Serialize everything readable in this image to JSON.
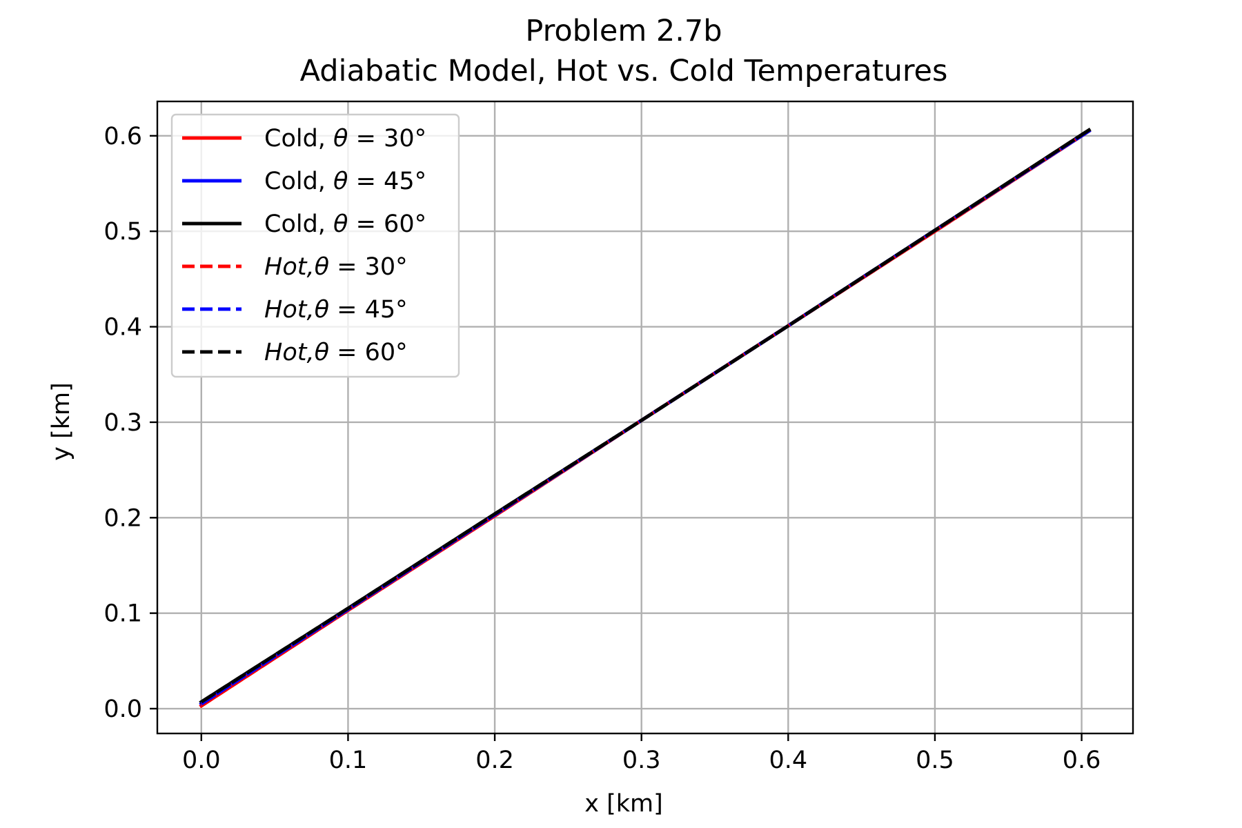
{
  "chart_data": {
    "type": "line",
    "title": "Problem 2.7b",
    "subtitle": "Adiabatic Model, Hot vs. Cold Temperatures",
    "xlabel": "x [km]",
    "ylabel": "y [km]",
    "xlim": [
      -0.03,
      0.635
    ],
    "ylim": [
      -0.026,
      0.636
    ],
    "xticks": [
      0.0,
      0.1,
      0.2,
      0.3,
      0.4,
      0.5,
      0.6
    ],
    "yticks": [
      0.0,
      0.1,
      0.2,
      0.3,
      0.4,
      0.5,
      0.6
    ],
    "xtick_labels": [
      "0.0",
      "0.1",
      "0.2",
      "0.3",
      "0.4",
      "0.5",
      "0.6"
    ],
    "ytick_labels": [
      "0.0",
      "0.1",
      "0.2",
      "0.3",
      "0.4",
      "0.5",
      "0.6"
    ],
    "grid": true,
    "legend_position": "upper-left",
    "series": [
      {
        "label_prefix": "Cold, ",
        "label_math": "θ",
        "label_suffix": " = 30°",
        "italic_prefix": false,
        "color": "#ff0000",
        "linestyle": "solid",
        "x": [
          0.0,
          0.1,
          0.2,
          0.3,
          0.4,
          0.5,
          0.605
        ],
        "y": [
          0.003,
          0.103,
          0.202,
          0.302,
          0.401,
          0.5,
          0.605
        ]
      },
      {
        "label_prefix": "Cold, ",
        "label_math": "θ",
        "label_suffix": " = 45°",
        "italic_prefix": false,
        "color": "#0000ff",
        "linestyle": "solid",
        "x": [
          0.0,
          0.1,
          0.2,
          0.3,
          0.4,
          0.5,
          0.605
        ],
        "y": [
          0.005,
          0.104,
          0.203,
          0.302,
          0.401,
          0.501,
          0.605
        ]
      },
      {
        "label_prefix": "Cold, ",
        "label_math": "θ",
        "label_suffix": " = 60°",
        "italic_prefix": false,
        "color": "#000000",
        "linestyle": "solid",
        "x": [
          0.0,
          0.1,
          0.2,
          0.3,
          0.4,
          0.5,
          0.605
        ],
        "y": [
          0.007,
          0.105,
          0.204,
          0.302,
          0.401,
          0.501,
          0.606
        ]
      },
      {
        "label_prefix": "Hot,",
        "label_math": "θ",
        "label_suffix": " = 30°",
        "italic_prefix": true,
        "color": "#ff0000",
        "linestyle": "dashed",
        "x": [
          0.0,
          0.1,
          0.2,
          0.3,
          0.4,
          0.5,
          0.605
        ],
        "y": [
          0.003,
          0.103,
          0.202,
          0.302,
          0.401,
          0.5,
          0.605
        ]
      },
      {
        "label_prefix": "Hot,",
        "label_math": "θ",
        "label_suffix": " = 45°",
        "italic_prefix": true,
        "color": "#0000ff",
        "linestyle": "dashed",
        "x": [
          0.0,
          0.1,
          0.2,
          0.3,
          0.4,
          0.5,
          0.605
        ],
        "y": [
          0.005,
          0.104,
          0.203,
          0.302,
          0.401,
          0.501,
          0.605
        ]
      },
      {
        "label_prefix": "Hot,",
        "label_math": "θ",
        "label_suffix": " = 60°",
        "italic_prefix": true,
        "color": "#000000",
        "linestyle": "dashed",
        "x": [
          0.0,
          0.1,
          0.2,
          0.3,
          0.4,
          0.5,
          0.605
        ],
        "y": [
          0.007,
          0.105,
          0.204,
          0.302,
          0.401,
          0.501,
          0.606
        ]
      }
    ]
  }
}
